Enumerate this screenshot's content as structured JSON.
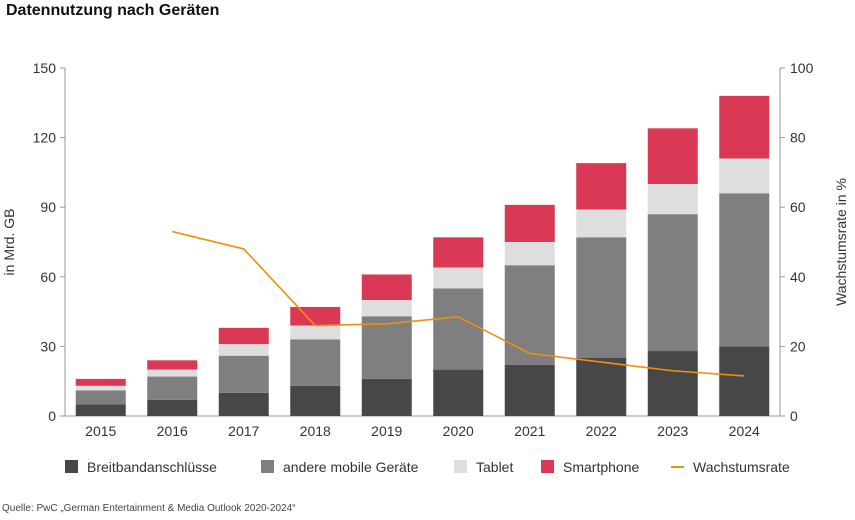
{
  "title": "Datennutzung nach Geräten",
  "source": "Quelle: PwC „German Entertainment & Media Outlook 2020-2024“",
  "colors": {
    "Breitbandanschlüsse": "#474747",
    "andere mobile Geräte": "#7f7f7f",
    "Tablet": "#dedede",
    "Smartphone": "#d93954",
    "Wachstumsrate": "#ef8f10",
    "axis": "#999999"
  },
  "chart_data": {
    "type": "bar",
    "stacked": true,
    "categories": [
      "2015",
      "2016",
      "2017",
      "2018",
      "2019",
      "2020",
      "2021",
      "2022",
      "2023",
      "2024"
    ],
    "series": [
      {
        "name": "Breitbandanschlüsse",
        "values": [
          5,
          7,
          10,
          13,
          16,
          20,
          22,
          25,
          28,
          30
        ]
      },
      {
        "name": "andere mobile Geräte",
        "values": [
          6,
          10,
          16,
          20,
          27,
          35,
          43,
          52,
          59,
          66
        ]
      },
      {
        "name": "Tablet",
        "values": [
          2,
          3,
          5,
          6,
          7,
          9,
          10,
          12,
          13,
          15
        ]
      },
      {
        "name": "Smartphone",
        "values": [
          3,
          4,
          7,
          8,
          11,
          13,
          16,
          20,
          24,
          27
        ]
      }
    ],
    "line_series": {
      "name": "Wachstumsrate",
      "axis": "right",
      "values": [
        null,
        53,
        48,
        26,
        26.5,
        28.5,
        18,
        15.5,
        13,
        11.5
      ]
    },
    "ylabel": "in Mrd. GB",
    "ylabel_right": "Wachstumsrate in %",
    "ylim": [
      0,
      150
    ],
    "ylim_right": [
      0,
      100
    ],
    "yticks": [
      "0",
      "30",
      "60",
      "90",
      "120",
      "150"
    ],
    "yticks_right": [
      "0",
      "20",
      "40",
      "60",
      "80",
      "100"
    ],
    "legend_position": "bottom",
    "grid": false
  }
}
